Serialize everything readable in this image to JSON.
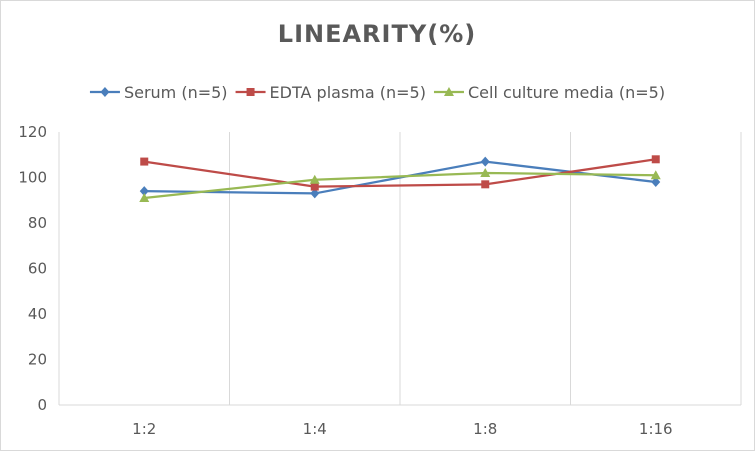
{
  "chart_data": {
    "type": "line",
    "title": "LINEARITY(%)",
    "xlabel": "",
    "ylabel": "",
    "categories": [
      "1:2",
      "1:4",
      "1:8",
      "1:16"
    ],
    "ylim": [
      0,
      120
    ],
    "yticks": [
      0,
      20,
      40,
      60,
      80,
      100,
      120
    ],
    "grid": "vertical",
    "legend_position": "top",
    "series": [
      {
        "name": "Serum (n=5)",
        "color": "#4a7ebb",
        "marker": "diamond",
        "values": [
          94,
          93,
          107,
          98
        ]
      },
      {
        "name": "EDTA plasma (n=5)",
        "color": "#be4b48",
        "marker": "square",
        "values": [
          107,
          96,
          97,
          108
        ]
      },
      {
        "name": "Cell culture media (n=5)",
        "color": "#98b954",
        "marker": "triangle",
        "values": [
          91,
          99,
          102,
          101
        ]
      }
    ]
  }
}
